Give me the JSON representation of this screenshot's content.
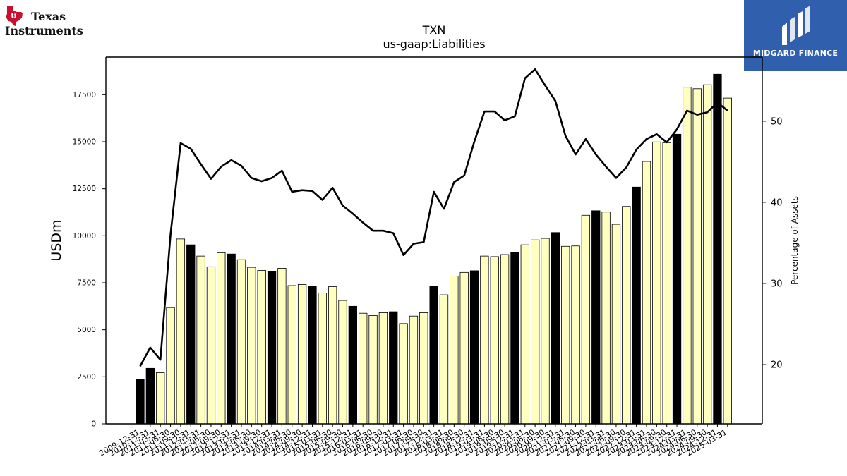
{
  "header": {
    "brand_left": {
      "name_line1": "Texas",
      "name_line2": "Instruments",
      "icon": "texas-instruments-logo"
    },
    "brand_right": {
      "name": "MIDGARD FINANCE",
      "icon": "midgard-finance-logo"
    }
  },
  "colors": {
    "bar_light": "#ffffc0",
    "bar_dark": "#000000",
    "line": "#000000",
    "midgard_bg": "#2f5fad"
  },
  "chart_data": {
    "type": "bar",
    "title": "TXN",
    "subtitle": "us-gaap:Liabilities",
    "ylabel": "USDm",
    "y2label": "Percentage of Assets",
    "ylim": [
      0,
      19500
    ],
    "y2lim": [
      12.7,
      57.9
    ],
    "yticks": [
      0,
      2500,
      5000,
      7500,
      10000,
      12500,
      15000,
      17500
    ],
    "y2ticks": [
      20,
      30,
      40,
      50
    ],
    "grid": false,
    "legend": "none",
    "categories": [
      "2009-12-31",
      "2010-12-31",
      "2011-03-31",
      "2011-06-30",
      "2011-09-30",
      "2011-12-31",
      "2012-03-31",
      "2012-06-30",
      "2012-09-30",
      "2012-12-31",
      "2013-03-31",
      "2013-06-30",
      "2013-09-30",
      "2013-12-31",
      "2014-03-31",
      "2014-06-30",
      "2014-09-30",
      "2014-12-31",
      "2015-03-31",
      "2015-06-30",
      "2015-09-30",
      "2015-12-31",
      "2016-03-31",
      "2016-06-30",
      "2016-09-30",
      "2016-12-31",
      "2017-03-31",
      "2017-06-30",
      "2017-09-30",
      "2017-12-31",
      "2018-03-31",
      "2018-06-30",
      "2018-09-30",
      "2018-12-31",
      "2019-03-31",
      "2019-06-30",
      "2019-09-30",
      "2019-12-31",
      "2020-03-31",
      "2020-06-30",
      "2020-09-30",
      "2020-12-31",
      "2021-03-31",
      "2021-06-30",
      "2021-09-30",
      "2021-12-31",
      "2022-03-31",
      "2022-06-30",
      "2022-09-30",
      "2022-12-31",
      "2023-03-31",
      "2023-06-30",
      "2023-09-30",
      "2023-12-31",
      "2024-03-31",
      "2024-06-30",
      "2024-09-30",
      "2024-12-31",
      "2025-03-31"
    ],
    "annual_flags": [
      1,
      1,
      0,
      0,
      0,
      1,
      0,
      0,
      0,
      1,
      0,
      0,
      0,
      1,
      0,
      0,
      0,
      1,
      0,
      0,
      0,
      1,
      0,
      0,
      0,
      1,
      0,
      0,
      0,
      1,
      0,
      0,
      0,
      1,
      0,
      0,
      0,
      1,
      0,
      0,
      0,
      1,
      0,
      0,
      0,
      1,
      0,
      0,
      0,
      1,
      0,
      0,
      0,
      1,
      0,
      0,
      0,
      1,
      0
    ],
    "tick_labels": [
      "2009-12-31",
      "2010-12-31",
      "2011-03-31",
      "2011-06-30",
      "2011-09-30",
      "2011-12-31",
      "2012-03-31",
      "2012-06-30",
      "2012-09-30",
      "2012-12-31",
      "2013-03-31",
      "2013-06-30",
      "2013-09-30",
      "2013-12-31",
      "2014-03-31",
      "2014-06-30",
      "2014-09-30",
      "2014-12-31",
      "2015-03-31",
      "2015-06-30",
      "2015-09-30",
      "2015-12-31",
      "2016-03-31",
      "2016-06-30",
      "2016-09-30",
      "2016-12-31",
      "2017-03-31",
      "2017-06-30",
      "2017-09-30",
      "2017-12-31",
      "2018-03-31",
      "2018-06-30",
      "2018-09-30",
      "2018-12-31",
      "2019-03-31",
      "2019-06-30",
      "2019-09-30",
      "2019-12-31",
      "2020-03-31",
      "2020-06-30",
      "2020-09-30",
      "2020-12-31",
      "2021-03-31",
      "2021-06-30",
      "2021-09-30",
      "2021-12-31",
      "2022-03-31",
      "2022-06-30",
      "2022-09-30",
      "2022-12-31",
      "2023-03-31",
      "2023-06-30",
      "2023-09-30",
      "2023-12-31",
      "2024-03-31",
      "2024-06-30",
      "2024-09-30",
      "2024-12-31",
      "2025-03-31"
    ],
    "series": [
      {
        "type": "bar",
        "axis": "left",
        "values": [
          2380,
          2950,
          2720,
          6180,
          9830,
          9520,
          8920,
          8350,
          9100,
          9030,
          8730,
          8320,
          8160,
          8120,
          8270,
          7350,
          7410,
          7310,
          6960,
          7290,
          6560,
          6250,
          5880,
          5760,
          5910,
          5960,
          5330,
          5730,
          5910,
          7300,
          6860,
          7860,
          8050,
          8140,
          8920,
          8890,
          9000,
          9110,
          9520,
          9780,
          9860,
          10170,
          9440,
          9460,
          11090,
          11330,
          11260,
          10610,
          11560,
          12590,
          13950,
          14990,
          14950,
          15400,
          17900,
          17820,
          18030,
          18590,
          17320
        ]
      },
      {
        "type": "line",
        "axis": "right",
        "values": [
          19.8,
          22.1,
          20.6,
          36.0,
          47.3,
          46.6,
          44.7,
          42.9,
          44.4,
          45.2,
          44.5,
          43.0,
          42.6,
          43.0,
          43.9,
          41.3,
          41.5,
          41.4,
          40.3,
          41.8,
          39.6,
          38.6,
          37.5,
          36.5,
          36.5,
          36.2,
          33.5,
          34.9,
          35.1,
          41.3,
          39.2,
          42.5,
          43.3,
          47.5,
          51.2,
          51.2,
          50.1,
          50.6,
          55.3,
          56.4,
          54.4,
          52.5,
          48.2,
          45.9,
          47.8,
          45.9,
          44.4,
          43.0,
          44.3,
          46.5,
          47.8,
          48.4,
          47.4,
          49.0,
          51.3,
          50.8,
          51.1,
          52.3,
          51.3
        ]
      }
    ]
  }
}
